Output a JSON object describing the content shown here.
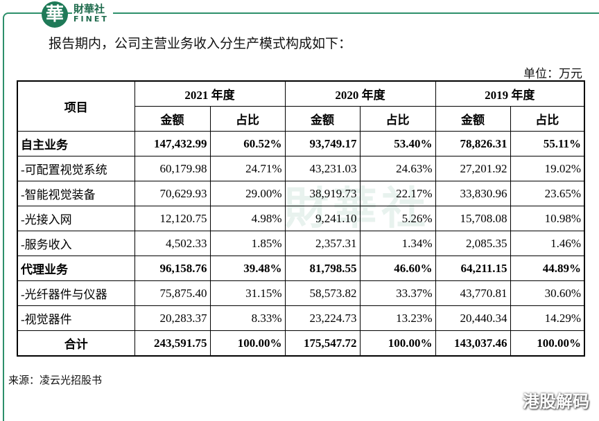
{
  "header": {
    "logo_char": "華",
    "brand": "財華社",
    "brand_en": "FINET"
  },
  "intro": "报告期内，公司主营业务收入分生产模式构成如下：",
  "unit": "单位：万元",
  "table": {
    "item_header": "项目",
    "years": [
      "2021 年度",
      "2020 年度",
      "2019 年度"
    ],
    "subheaders": [
      "金额",
      "占比",
      "金额",
      "占比",
      "金额",
      "占比"
    ],
    "rows": [
      {
        "label": "自主业务",
        "bold": true,
        "cells": [
          "147,432.99",
          "60.52%",
          "93,749.17",
          "53.40%",
          "78,826.31",
          "55.11%"
        ]
      },
      {
        "label": "-可配置视觉系统",
        "bold": false,
        "cells": [
          "60,179.98",
          "24.71%",
          "43,231.03",
          "24.63%",
          "27,201.92",
          "19.02%"
        ]
      },
      {
        "label": "-智能视觉装备",
        "bold": false,
        "cells": [
          "70,629.93",
          "29.00%",
          "38,919.73",
          "22.17%",
          "33,830.96",
          "23.65%"
        ]
      },
      {
        "label": "-光接入网",
        "bold": false,
        "cells": [
          "12,120.75",
          "4.98%",
          "9,241.10",
          "5.26%",
          "15,708.08",
          "10.98%"
        ]
      },
      {
        "label": "-服务收入",
        "bold": false,
        "cells": [
          "4,502.33",
          "1.85%",
          "2,357.31",
          "1.34%",
          "2,085.35",
          "1.46%"
        ]
      },
      {
        "label": "代理业务",
        "bold": true,
        "cells": [
          "96,158.76",
          "39.48%",
          "81,798.55",
          "46.60%",
          "64,211.15",
          "44.89%"
        ]
      },
      {
        "label": "-光纤器件与仪器",
        "bold": false,
        "cells": [
          "75,875.40",
          "31.15%",
          "58,573.82",
          "33.37%",
          "43,770.81",
          "30.60%"
        ]
      },
      {
        "label": "-视觉器件",
        "bold": false,
        "cells": [
          "20,283.37",
          "8.33%",
          "23,224.73",
          "13.23%",
          "20,440.34",
          "14.29%"
        ]
      },
      {
        "label": "合计",
        "bold": true,
        "label_align": "center",
        "cells": [
          "243,591.75",
          "100.00%",
          "175,547.72",
          "100.00%",
          "143,037.46",
          "100.00%"
        ]
      }
    ]
  },
  "source": "来源：凌云光招股书",
  "watermark": "港股解码"
}
